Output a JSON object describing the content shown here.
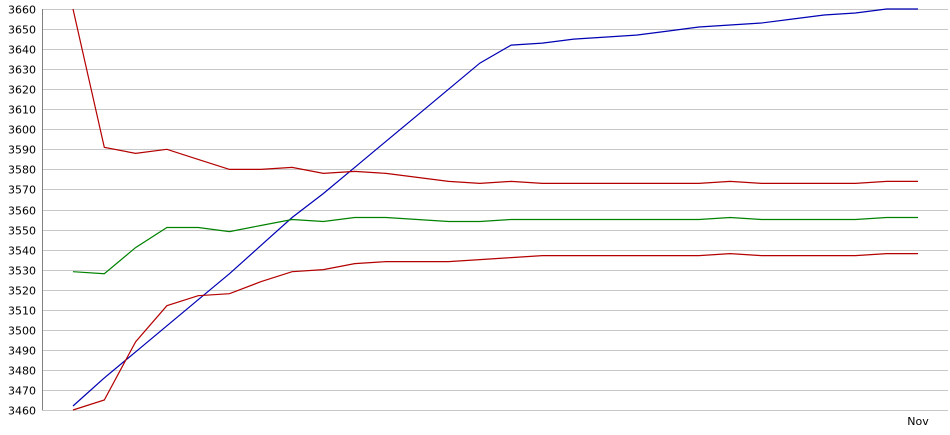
{
  "chart_data": {
    "type": "line",
    "title": "",
    "xlabel": "",
    "ylabel": "",
    "ylim": [
      3460,
      3660
    ],
    "yticks": [
      3460,
      3470,
      3480,
      3490,
      3500,
      3510,
      3520,
      3530,
      3540,
      3550,
      3560,
      3570,
      3580,
      3590,
      3600,
      3610,
      3620,
      3630,
      3640,
      3650,
      3660
    ],
    "grid": true,
    "legend": "none",
    "x_tick_labels": [
      {
        "index": 27,
        "label": "Nov"
      }
    ],
    "x": [
      0,
      1,
      2,
      3,
      4,
      5,
      6,
      7,
      8,
      9,
      10,
      11,
      12,
      13,
      14,
      15,
      16,
      17,
      18,
      19,
      20,
      21,
      22,
      23,
      24,
      25,
      26,
      27
    ],
    "series": [
      {
        "color": "#0000b4",
        "values": [
          3462,
          3476,
          3489,
          3502,
          3515,
          3528,
          3542,
          3556,
          3568,
          3581,
          3594,
          3607,
          3620,
          3633,
          3642,
          3643,
          3645,
          3646,
          3647,
          3649,
          3651,
          3652,
          3653,
          3655,
          3657,
          3658,
          3660,
          3660
        ]
      },
      {
        "color": "#b40000",
        "values": [
          3660,
          3591,
          3588,
          3590,
          3585,
          3580,
          3580,
          3581,
          3578,
          3579,
          3578,
          3576,
          3574,
          3573,
          3574,
          3573,
          3573,
          3573,
          3573,
          3573,
          3573,
          3574,
          3573,
          3573,
          3573,
          3573,
          3574,
          3574
        ]
      },
      {
        "color": "#008200",
        "values": [
          3529,
          3528,
          3541,
          3551,
          3551,
          3549,
          3552,
          3555,
          3554,
          3556,
          3556,
          3555,
          3554,
          3554,
          3555,
          3555,
          3555,
          3555,
          3555,
          3555,
          3555,
          3556,
          3555,
          3555,
          3555,
          3555,
          3556,
          3556
        ]
      },
      {
        "color": "#b40000",
        "values": [
          3460,
          3465,
          3494,
          3512,
          3517,
          3518,
          3524,
          3529,
          3530,
          3533,
          3534,
          3534,
          3534,
          3535,
          3536,
          3537,
          3537,
          3537,
          3537,
          3537,
          3537,
          3538,
          3537,
          3537,
          3537,
          3537,
          3538,
          3538
        ]
      }
    ]
  }
}
